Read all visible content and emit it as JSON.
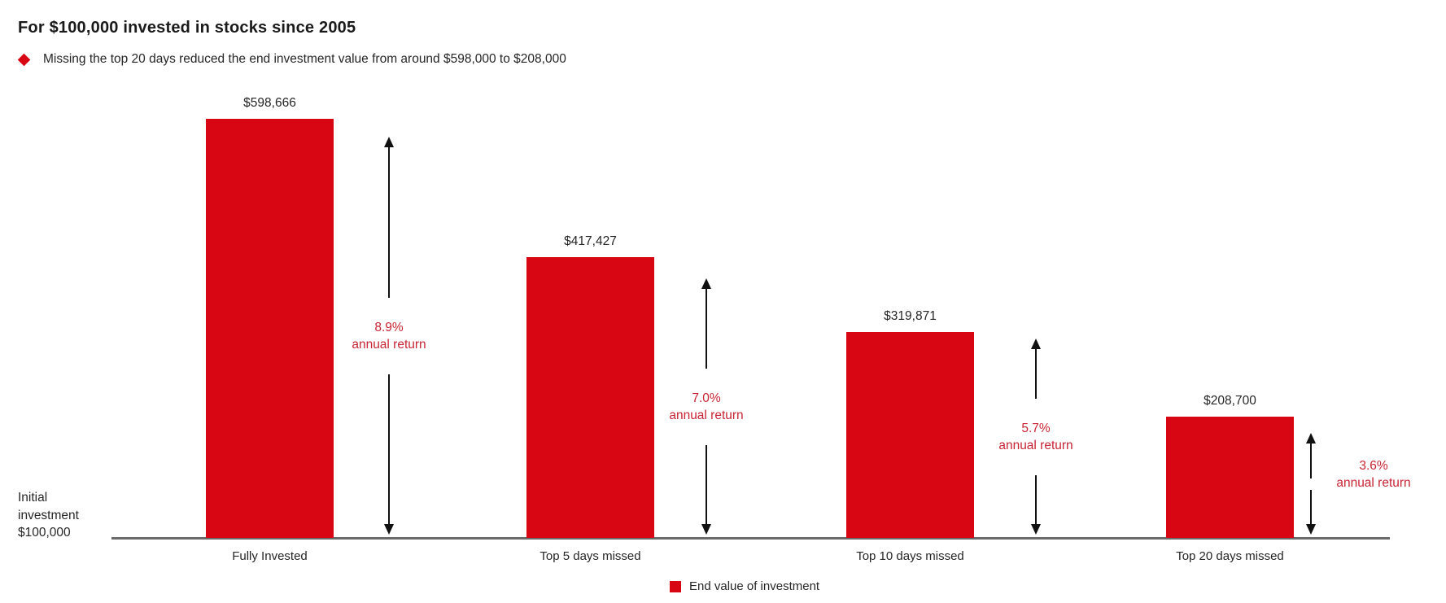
{
  "header": {
    "title": "For $100,000 invested in stocks since 2005",
    "subtitle": "Missing the top 20 days reduced the end investment value from around $598,000 to $208,000",
    "bullet_icon": "diamond-icon"
  },
  "baseline_label": {
    "lines": [
      "Initial",
      "investment",
      "$100,000"
    ]
  },
  "legend": {
    "label": "End value of investment"
  },
  "colors": {
    "bar_red": "#d80613",
    "return_text_red": "#c92434",
    "axis_gray": "#6b6b6b",
    "arrow_black": "#111111",
    "text_dark": "#262626"
  },
  "chart_data": {
    "type": "bar",
    "title": "For $100,000 invested in stocks since 2005",
    "subtitle": "Missing the top 20 days reduced the end investment value from around $598,000 to $208,000",
    "categories": [
      "Fully Invested",
      "Top 5 days missed",
      "Top 10 days missed",
      "Top 20 days missed"
    ],
    "series": [
      {
        "name": "End value of investment",
        "values": [
          598666,
          417427,
          319871,
          208700
        ]
      }
    ],
    "value_labels": [
      "$598,666",
      "$417,427",
      "$319,871",
      "$208,700"
    ],
    "annual_returns": [
      {
        "pct": "8.9%",
        "label": "annual return"
      },
      {
        "pct": "7.0%",
        "label": "annual return"
      },
      {
        "pct": "5.7%",
        "label": "annual return"
      },
      {
        "pct": "3.6%",
        "label": "annual return"
      }
    ],
    "baseline_label": "Initial investment $100,000",
    "xlabel": "",
    "ylabel": "",
    "grid": false,
    "legend_position": "bottom-center",
    "bar_color": "#d80613"
  }
}
